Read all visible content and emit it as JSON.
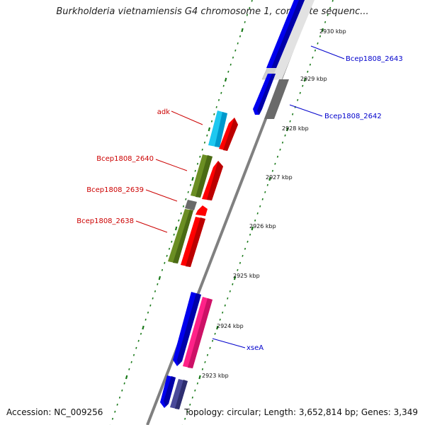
{
  "title": "Burkholderia vietnamiensis G4 chromosome 1, complete sequenc...",
  "accession_label": "Accession: NC_009256",
  "summary_label": "Topology: circular; Length: 3,652,814 bp; Genes: 3,349",
  "colors": {
    "backbone": "#808080",
    "tick_green": "#1a7a1a",
    "blue_gene": "#0000ee",
    "red_gene": "#ff0000",
    "olive_gene": "#6b8e23",
    "cyan_gene": "#22bbee",
    "magenta_gene": "#ff2288",
    "gray_gene": "#707070",
    "light_gray_gene": "#cccccc",
    "navy_gene": "#4a4a9a",
    "label_red": "#cc0000",
    "label_blue": "#0000cc"
  },
  "kbp_labels": [
    "2930 kbp",
    "2929 kbp",
    "2928 kbp",
    "2927 kbp",
    "2926 kbp",
    "2925 kbp",
    "2924 kbp",
    "2923 kbp"
  ],
  "gene_labels": {
    "adk": "adk",
    "bcep2640": "Bcep1808_2640",
    "bcep2639": "Bcep1808_2639",
    "bcep2638": "Bcep1808_2638",
    "bcep2643": "Bcep1808_2643",
    "bcep2642": "Bcep1808_2642",
    "xseA": "xseA"
  }
}
